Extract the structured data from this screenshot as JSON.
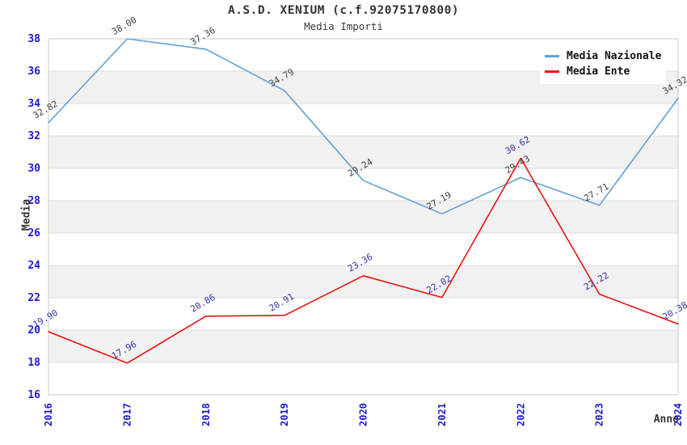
{
  "header": {
    "title": "A.S.D. XENIUM (c.f.92075170800)",
    "subtitle": "Media Importi"
  },
  "chart_data": {
    "type": "line",
    "x": [
      "2016",
      "2017",
      "2018",
      "2019",
      "2020",
      "2021",
      "2022",
      "2023",
      "2024"
    ],
    "series": [
      {
        "name": "Media Nazionale",
        "color": "#63a0d4",
        "label_color": "#3f3f3f",
        "values": [
          32.82,
          38.0,
          37.36,
          34.79,
          29.24,
          27.19,
          29.43,
          27.71,
          34.32
        ]
      },
      {
        "name": "Media Ente",
        "color": "#ee1111",
        "label_color": "#3434a8",
        "values": [
          19.9,
          17.96,
          20.86,
          20.91,
          23.36,
          22.02,
          30.62,
          22.22,
          20.38
        ]
      }
    ],
    "xlabel": "Anno",
    "ylabel": "Media",
    "ylim": [
      16,
      38
    ],
    "ytick_step": 2,
    "grid": "horizontal-bands",
    "band_colors": [
      "#ffffff",
      "#f1f1f1"
    ],
    "gridline_color": "#dedede",
    "plot_border_color": "#cccccc",
    "tick_label_color": "#1b1bd1",
    "legend_position": "top-right"
  }
}
